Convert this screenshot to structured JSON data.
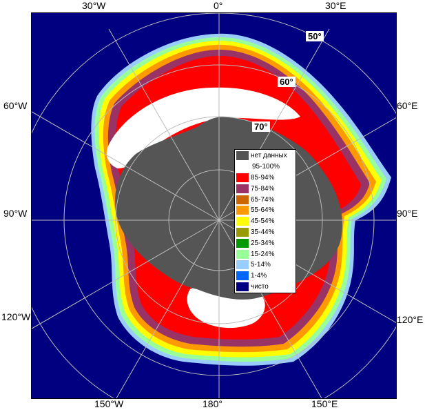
{
  "longitude_labels": {
    "top_left": "30°W",
    "top_center": "0°",
    "top_right": "30°E",
    "left_upper": "60°W",
    "left_mid": "90°W",
    "left_lower": "120°W",
    "right_upper": "60°E",
    "right_mid": "90°E",
    "right_lower": "120°E",
    "bottom_left": "150°W",
    "bottom_center": "180°",
    "bottom_right": "150°E"
  },
  "latitude_labels": {
    "lat50": "50°",
    "lat60": "60°",
    "lat70": "70°"
  },
  "legend": [
    {
      "label": "нет данных",
      "color": "#555555"
    },
    {
      "label": "95-100%",
      "color": "#ffffff"
    },
    {
      "label": "85-94%",
      "color": "#ff0000"
    },
    {
      "label": "75-84%",
      "color": "#993366"
    },
    {
      "label": "65-74%",
      "color": "#cc6600"
    },
    {
      "label": "55-64%",
      "color": "#ff9900"
    },
    {
      "label": "45-54%",
      "color": "#ffff00"
    },
    {
      "label": "35-44%",
      "color": "#999900"
    },
    {
      "label": "25-34%",
      "color": "#009900"
    },
    {
      "label": "15-24%",
      "color": "#99ff99"
    },
    {
      "label": "5-14%",
      "color": "#99ccff"
    },
    {
      "label": "1-4%",
      "color": "#0066ff"
    },
    {
      "label": "чисто",
      "color": "#000080"
    }
  ]
}
